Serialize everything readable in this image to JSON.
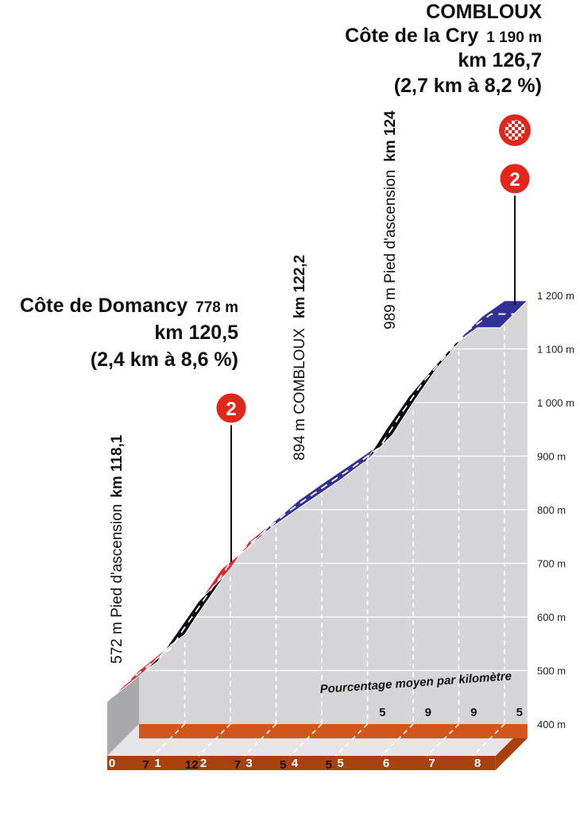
{
  "chart_data": {
    "type": "area",
    "title": "",
    "xlabel": "",
    "ylabel": "",
    "x_ticks": [
      "0",
      "1",
      "2",
      "3",
      "4",
      "5",
      "6",
      "7",
      "8"
    ],
    "xlim": [
      0,
      8.5
    ],
    "ylim": [
      400,
      1200
    ],
    "y_ticks": [
      "400 m",
      "500 m",
      "600 m",
      "700 m",
      "800 m",
      "900 m",
      "1 000 m",
      "1 100 m",
      "1 200 m"
    ],
    "y_tick_values": [
      400,
      500,
      600,
      700,
      800,
      900,
      1000,
      1100,
      1200
    ],
    "elevation_profile": [
      {
        "km": 0,
        "alt": 500
      },
      {
        "km": 0.7,
        "alt": 548
      },
      {
        "km": 1,
        "alt": 567
      },
      {
        "km": 1.25,
        "alt": 600
      },
      {
        "km": 1.9,
        "alt": 680
      },
      {
        "km": 2,
        "alt": 690
      },
      {
        "km": 2.4,
        "alt": 740
      },
      {
        "km": 2.95,
        "alt": 778
      },
      {
        "km": 3,
        "alt": 781
      },
      {
        "km": 3.5,
        "alt": 818
      },
      {
        "km": 4,
        "alt": 848
      },
      {
        "km": 4.5,
        "alt": 877
      },
      {
        "km": 5,
        "alt": 906
      },
      {
        "km": 5.5,
        "alt": 938
      },
      {
        "km": 5.55,
        "alt": 940
      },
      {
        "km": 6,
        "alt": 1000
      },
      {
        "km": 6.5,
        "alt": 1062
      },
      {
        "km": 7,
        "alt": 1112
      },
      {
        "km": 7.5,
        "alt": 1160
      },
      {
        "km": 8,
        "alt": 1190
      },
      {
        "km": 8.5,
        "alt": 1190
      }
    ],
    "segments": [
      {
        "from": 0,
        "to": 0.7,
        "color": "#e8232a"
      },
      {
        "from": 0.7,
        "to": 1.9,
        "color": "#0a0a0a"
      },
      {
        "from": 1.9,
        "to": 2.95,
        "color": "#e8232a"
      },
      {
        "from": 2.95,
        "to": 5.55,
        "color": "#323296"
      },
      {
        "from": 5.55,
        "to": 7.5,
        "color": "#0a0a0a"
      },
      {
        "from": 7.5,
        "to": 8.5,
        "color": "#323296"
      }
    ],
    "km_gradients": [
      "7",
      "12",
      "7",
      "5",
      "5",
      "5",
      "9",
      "9",
      "5"
    ],
    "km_gradient_values": [
      7,
      12,
      7,
      5,
      5,
      5,
      9,
      9,
      5
    ],
    "legend_note": "Pourcentage moyen par kilomètre",
    "colors": {
      "face": "#d6d6d8",
      "side": "#a9a9ab",
      "road_band": "#d2561c",
      "road_band_dark": "#a8410f",
      "climb_badge": "#e1261c",
      "grid": "#ffffff"
    },
    "annotations": {
      "domancy": {
        "km": 2.95,
        "alt": 778,
        "name": "Côte de Domancy",
        "altitude": "778 m",
        "km_label": "km 120,5",
        "detail": "(2,4 km à 8,6 %)",
        "category": "2"
      },
      "foot_domancy": {
        "km": 0,
        "prefix": "572 m  Pied d'ascension",
        "km_label": "km 118,1"
      },
      "combloux_mid": {
        "km": 3.5,
        "prefix": "894 m   COMBLOUX",
        "km_label": "km 122,2"
      },
      "foot_cry": {
        "km": 5.55,
        "prefix": "989 m   Pied d'ascension",
        "km_label": "km 124"
      },
      "cry": {
        "km": 8.05,
        "alt": 1190,
        "place": "COMBLOUX",
        "name": "Côte de la Cry",
        "altitude": "1 190 m",
        "km_label": "km 126,7",
        "detail": "(2,7 km à 8,2 %)",
        "category": "2",
        "finish": "finish-flag-icon"
      }
    }
  }
}
